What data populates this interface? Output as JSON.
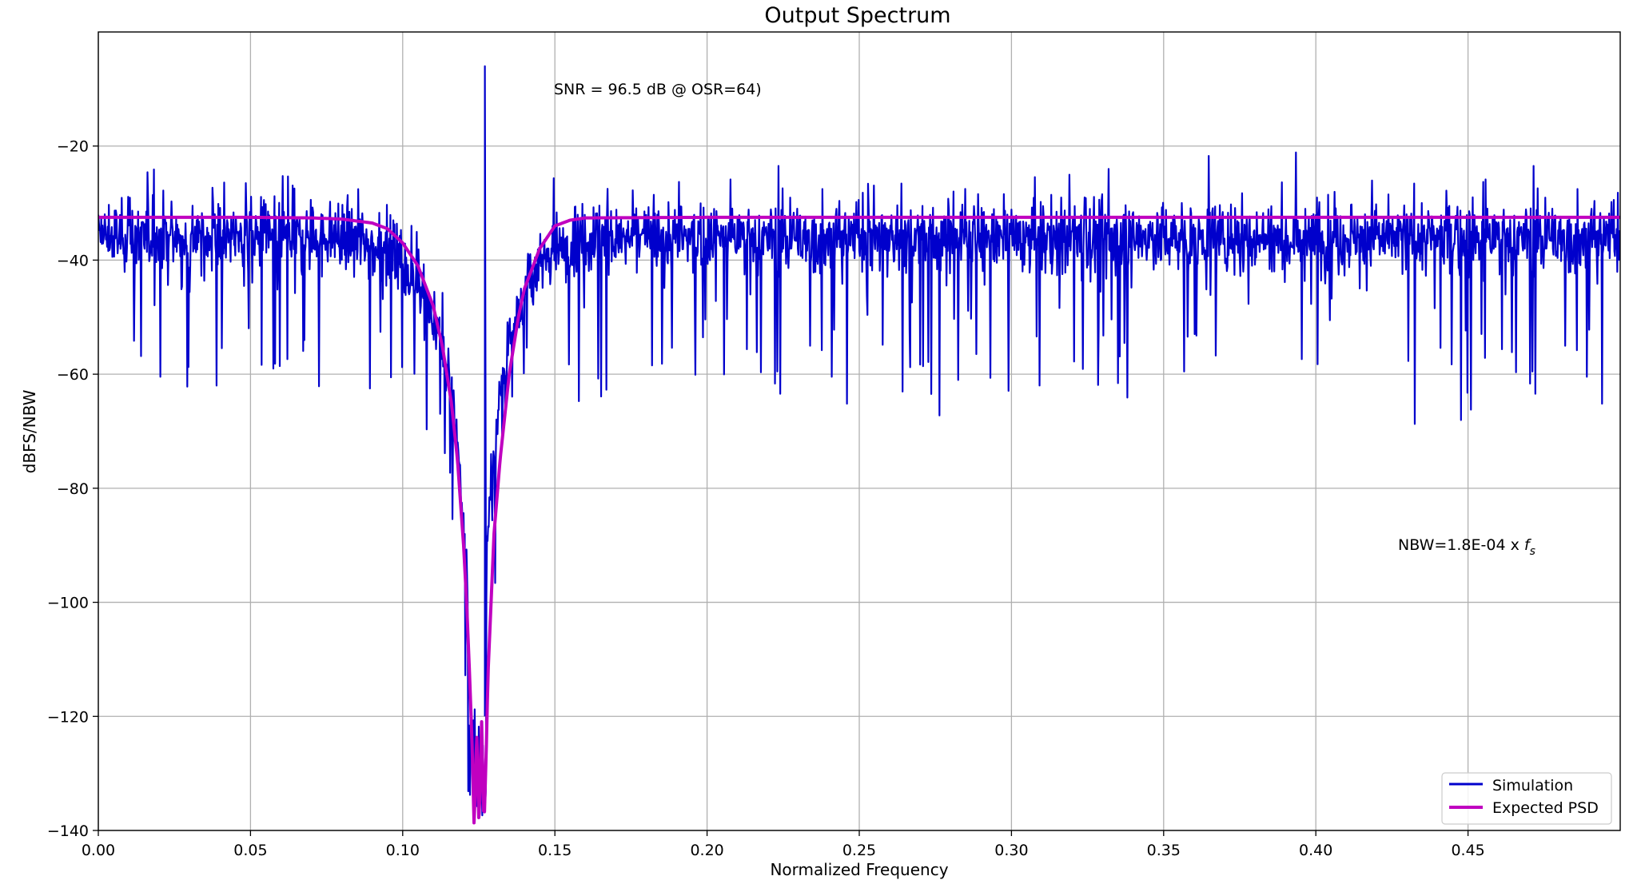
{
  "chart_data": {
    "type": "line",
    "title": "Output Spectrum",
    "xlabel": "Normalized Frequency",
    "ylabel": "dBFS/NBW",
    "xlim": [
      0,
      0.5
    ],
    "ylim": [
      -140,
      0
    ],
    "x_ticks": [
      "0.00",
      "0.05",
      "0.10",
      "0.15",
      "0.20",
      "0.25",
      "0.30",
      "0.35",
      "0.40",
      "0.45"
    ],
    "x_tick_values": [
      0,
      0.05,
      0.1,
      0.15,
      0.2,
      0.25,
      0.3,
      0.35,
      0.4,
      0.45
    ],
    "y_ticks": [
      "−20",
      "−40",
      "−60",
      "−80",
      "−100",
      "−120",
      "−140"
    ],
    "y_tick_values": [
      -20,
      -40,
      -60,
      -80,
      -100,
      -120,
      -140
    ],
    "grid": true,
    "legend_position": "bottom-right",
    "annotations": {
      "snr": "SNR = 96.5 dB @ OSR=64)",
      "nbw_prefix": "NBW=1.8E-04 x ",
      "nbw_f": "f",
      "nbw_sub": "s"
    },
    "series": [
      {
        "name": "Simulation",
        "color": "#0000cc",
        "description_points": {
          "x": [
            0.0,
            0.02,
            0.05,
            0.08,
            0.09,
            0.1,
            0.105,
            0.11,
            0.115,
            0.118,
            0.12,
            0.122,
            0.1245,
            0.127,
            0.128,
            0.13,
            0.133,
            0.136,
            0.14,
            0.145,
            0.15,
            0.16,
            0.2,
            0.3,
            0.4,
            0.5
          ],
          "y": [
            -33,
            -33,
            -33,
            -33,
            -34,
            -37,
            -41,
            -47,
            -58,
            -68,
            -83,
            -100,
            -125,
            -100,
            -85,
            -68,
            -58,
            -50,
            -44,
            -38,
            -35,
            -33,
            -33,
            -33,
            -33,
            -33
          ]
        },
        "tone": {
          "x": 0.127,
          "y": -6
        }
      },
      {
        "name": "Expected PSD",
        "color": "#c000c0",
        "x": [
          0.0,
          0.02,
          0.05,
          0.07,
          0.08,
          0.09,
          0.095,
          0.1,
          0.105,
          0.11,
          0.113,
          0.116,
          0.118,
          0.12,
          0.121,
          0.122,
          0.1228,
          0.1235,
          0.1243,
          0.1251,
          0.1259,
          0.1267,
          0.1275,
          0.128,
          0.13,
          0.132,
          0.135,
          0.138,
          0.14,
          0.145,
          0.15,
          0.155,
          0.16,
          0.2,
          0.3,
          0.4,
          0.5
        ],
        "y": [
          -32.5,
          -32.5,
          -32.5,
          -32.6,
          -32.8,
          -33.5,
          -34.5,
          -37,
          -41,
          -48,
          -55,
          -65,
          -75,
          -90,
          -100,
          -113,
          -125,
          -140,
          -122,
          -140,
          -120,
          -140,
          -125,
          -113,
          -88,
          -75,
          -60,
          -50,
          -45,
          -38,
          -34,
          -33,
          -32.6,
          -32.5,
          -32.5,
          -32.5,
          -32.5
        ]
      }
    ]
  }
}
